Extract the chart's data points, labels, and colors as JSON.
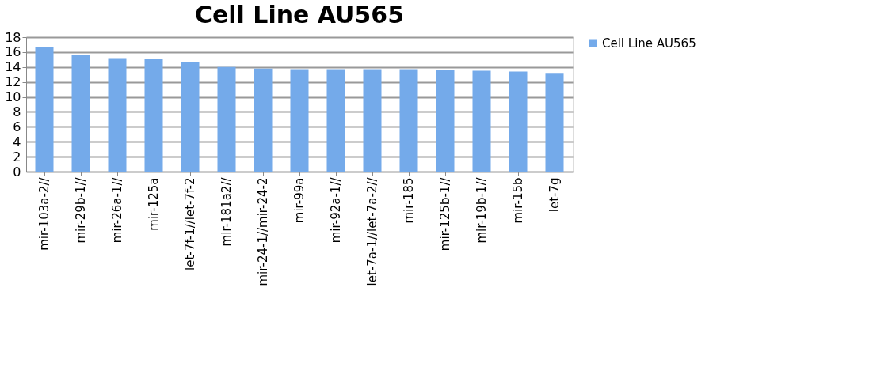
{
  "chart_data": {
    "type": "bar",
    "title": "Cell Line  AU565",
    "categories": [
      "mir-103a-2//",
      "mir-29b-1//",
      "mir-26a-1//",
      "mir-125a",
      "let-7f-1//let-7f-2",
      "mir-181a2//",
      "mir-24-1//mir-24-2",
      "mir-99a",
      "mir-92a-1//",
      "let-7a-1//let-7a-2//",
      "mir-185",
      "mir-125b-1//",
      "mir-19b-1//",
      "mir-15b",
      "let-7g"
    ],
    "series": [
      {
        "name": "Cell Line  AU565",
        "color": "#74aaea",
        "values": [
          16.7,
          15.6,
          15.2,
          15.1,
          14.7,
          14.0,
          13.8,
          13.7,
          13.7,
          13.7,
          13.7,
          13.6,
          13.5,
          13.4,
          13.2
        ]
      }
    ],
    "ylim": [
      0,
      18
    ],
    "yticks": [
      0,
      2,
      4,
      6,
      8,
      10,
      12,
      14,
      16,
      18
    ],
    "grid": "y",
    "legend": "right"
  }
}
